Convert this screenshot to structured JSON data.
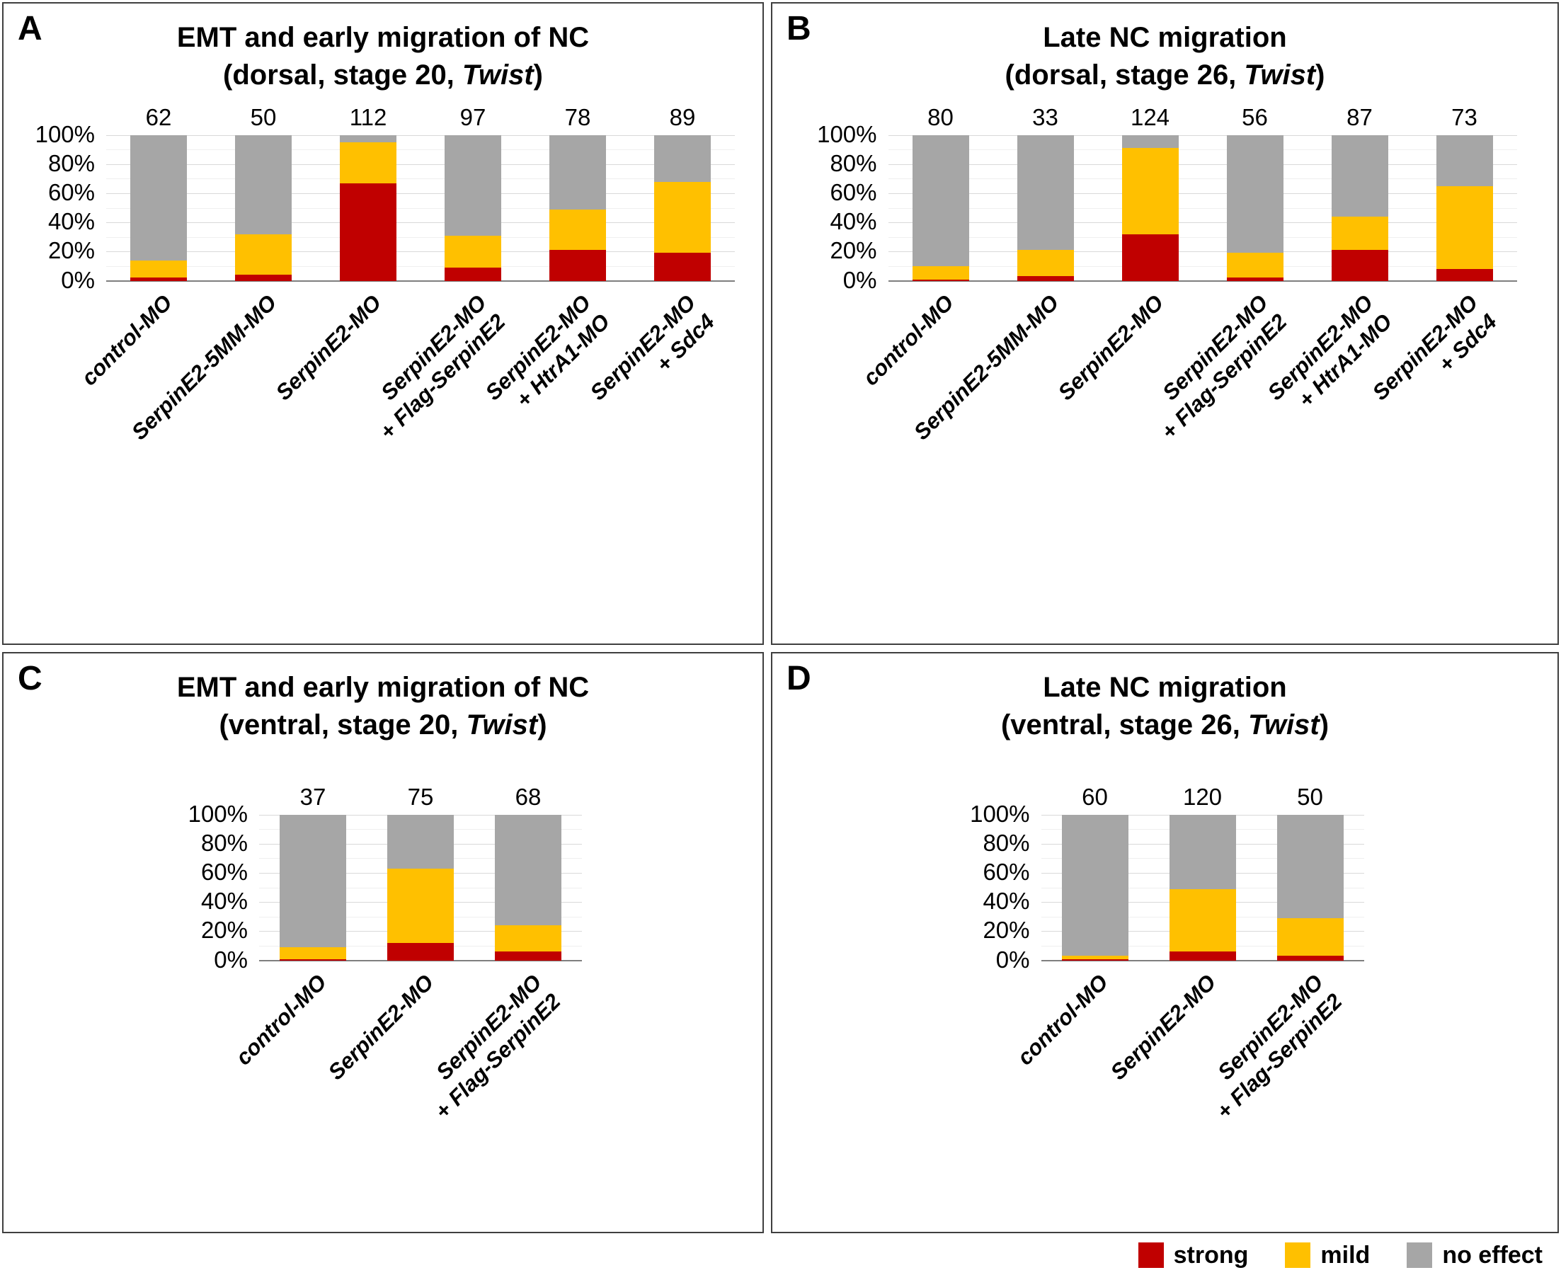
{
  "legend": {
    "position": "bottom-right",
    "items": [
      {
        "label": "strong",
        "color": "#c00000"
      },
      {
        "label": "mild",
        "color": "#ffc000"
      },
      {
        "label": "no effect",
        "color": "#a6a6a6"
      }
    ]
  },
  "chart_data": [
    {
      "type": "bar",
      "stacked": true,
      "panel": "A",
      "title": "EMT and early migration of NC",
      "subtitle_prefix": "(dorsal, stage 20, ",
      "subtitle_italic": "Twist",
      "subtitle_suffix": ")",
      "categories": [
        {
          "line1": "control-MO",
          "line2": ""
        },
        {
          "line1": "SerpinE2-5MM-MO",
          "line2": ""
        },
        {
          "line1": "SerpinE2-MO",
          "line2": ""
        },
        {
          "line1": "SerpinE2-MO",
          "line2": "+ Flag-SerpinE2"
        },
        {
          "line1": "SerpinE2-MO",
          "line2": "+ HtrA1-MO"
        },
        {
          "line1": "SerpinE2-MO",
          "line2": "+ Sdc4"
        }
      ],
      "n_values": [
        62,
        50,
        112,
        97,
        78,
        89
      ],
      "series": [
        {
          "name": "strong",
          "color": "#c00000",
          "values": [
            2,
            4,
            67,
            9,
            21,
            19
          ]
        },
        {
          "name": "mild",
          "color": "#ffc000",
          "values": [
            12,
            28,
            28,
            22,
            28,
            49
          ]
        },
        {
          "name": "no effect",
          "color": "#a6a6a6",
          "values": [
            86,
            68,
            5,
            69,
            51,
            32
          ]
        }
      ],
      "ylim": [
        0,
        100
      ],
      "ytick_labels": [
        "0%",
        "20%",
        "40%",
        "60%",
        "80%",
        "100%"
      ],
      "grid": true,
      "unit": "%"
    },
    {
      "type": "bar",
      "stacked": true,
      "panel": "B",
      "title": "Late NC migration",
      "subtitle_prefix": "(dorsal, stage 26, ",
      "subtitle_italic": "Twist",
      "subtitle_suffix": ")",
      "categories": [
        {
          "line1": "control-MO",
          "line2": ""
        },
        {
          "line1": "SerpinE2-5MM-MO",
          "line2": ""
        },
        {
          "line1": "SerpinE2-MO",
          "line2": ""
        },
        {
          "line1": "SerpinE2-MO",
          "line2": "+ Flag-SerpinE2"
        },
        {
          "line1": "SerpinE2-MO",
          "line2": "+ HtrA1-MO"
        },
        {
          "line1": "SerpinE2-MO",
          "line2": "+ Sdc4"
        }
      ],
      "n_values": [
        80,
        33,
        124,
        56,
        87,
        73
      ],
      "series": [
        {
          "name": "strong",
          "color": "#c00000",
          "values": [
            1,
            3,
            32,
            2,
            21,
            8
          ]
        },
        {
          "name": "mild",
          "color": "#ffc000",
          "values": [
            9,
            18,
            59,
            17,
            23,
            57
          ]
        },
        {
          "name": "no effect",
          "color": "#a6a6a6",
          "values": [
            90,
            79,
            9,
            81,
            56,
            35
          ]
        }
      ],
      "ylim": [
        0,
        100
      ],
      "ytick_labels": [
        "0%",
        "20%",
        "40%",
        "60%",
        "80%",
        "100%"
      ],
      "grid": true,
      "unit": "%"
    },
    {
      "type": "bar",
      "stacked": true,
      "panel": "C",
      "title": "EMT and early migration of NC",
      "subtitle_prefix": "(ventral, stage 20, ",
      "subtitle_italic": "Twist",
      "subtitle_suffix": ")",
      "categories": [
        {
          "line1": "control-MO",
          "line2": ""
        },
        {
          "line1": "SerpinE2-MO",
          "line2": ""
        },
        {
          "line1": "SerpinE2-MO",
          "line2": "+ Flag-SerpinE2"
        }
      ],
      "n_values": [
        37,
        75,
        68
      ],
      "series": [
        {
          "name": "strong",
          "color": "#c00000",
          "values": [
            1,
            12,
            6
          ]
        },
        {
          "name": "mild",
          "color": "#ffc000",
          "values": [
            8,
            51,
            18
          ]
        },
        {
          "name": "no effect",
          "color": "#a6a6a6",
          "values": [
            91,
            37,
            76
          ]
        }
      ],
      "ylim": [
        0,
        100
      ],
      "ytick_labels": [
        "0%",
        "20%",
        "40%",
        "60%",
        "80%",
        "100%"
      ],
      "grid": true,
      "unit": "%"
    },
    {
      "type": "bar",
      "stacked": true,
      "panel": "D",
      "title": "Late NC migration",
      "subtitle_prefix": "(ventral, stage 26, ",
      "subtitle_italic": "Twist",
      "subtitle_suffix": ")",
      "categories": [
        {
          "line1": "control-MO",
          "line2": ""
        },
        {
          "line1": "SerpinE2-MO",
          "line2": ""
        },
        {
          "line1": "SerpinE2-MO",
          "line2": "+ Flag-SerpinE2"
        }
      ],
      "n_values": [
        60,
        120,
        50
      ],
      "series": [
        {
          "name": "strong",
          "color": "#c00000",
          "values": [
            1,
            6,
            3
          ]
        },
        {
          "name": "mild",
          "color": "#ffc000",
          "values": [
            2,
            43,
            26
          ]
        },
        {
          "name": "no effect",
          "color": "#a6a6a6",
          "values": [
            97,
            51,
            71
          ]
        }
      ],
      "ylim": [
        0,
        100
      ],
      "ytick_labels": [
        "0%",
        "20%",
        "40%",
        "60%",
        "80%",
        "100%"
      ],
      "grid": true,
      "unit": "%"
    }
  ]
}
